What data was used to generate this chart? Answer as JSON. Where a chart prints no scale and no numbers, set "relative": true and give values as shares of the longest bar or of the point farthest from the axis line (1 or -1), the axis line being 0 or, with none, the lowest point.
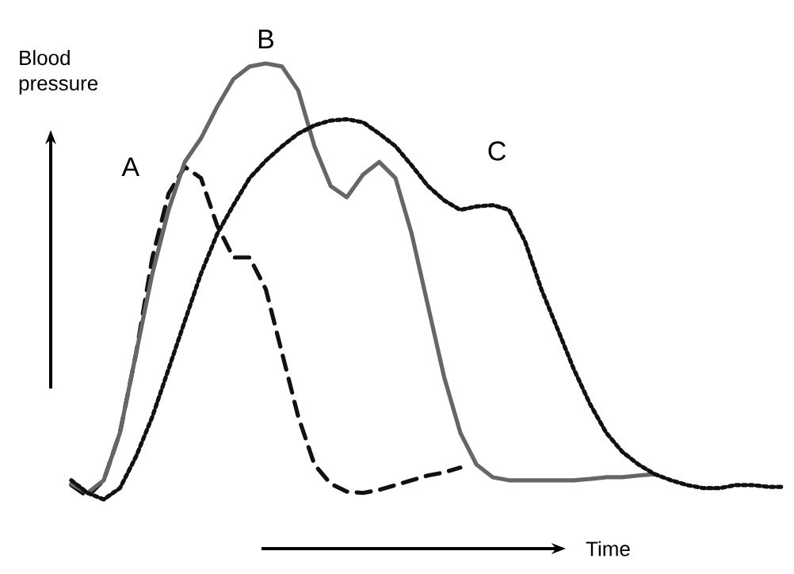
{
  "chart_data": {
    "type": "line",
    "relative": true,
    "xlabel": "Time",
    "ylabel": "Blood pressure",
    "marker": "none",
    "categories": [
      null,
      null,
      null,
      null,
      null,
      null,
      null,
      null,
      null,
      null,
      null,
      null,
      null,
      null,
      null,
      null,
      null,
      null,
      null,
      null,
      null,
      null,
      null,
      null,
      null,
      null,
      null,
      null,
      null,
      null,
      null,
      null,
      null,
      null,
      null,
      null,
      null,
      null,
      null,
      null,
      null,
      null,
      null,
      null,
      null
    ],
    "series": [
      {
        "name": "A",
        "color": "#111111",
        "line_style": "dashed",
        "values": [
          0.033,
          0.007,
          0.044,
          0.153,
          0.336,
          0.555,
          0.701,
          0.763,
          0.737,
          0.628,
          0.555,
          0.555,
          0.482,
          0.336,
          0.19,
          0.08,
          0.036,
          0.018,
          0.015,
          0.022,
          0.033,
          0.044,
          0.055,
          0.062,
          0.073,
          null,
          null,
          null,
          null,
          null,
          null,
          null,
          null,
          null,
          null,
          null,
          null,
          null,
          null,
          null,
          null,
          null,
          null,
          null,
          null
        ]
      },
      {
        "name": "B",
        "color": "#666666",
        "line_style": "solid",
        "values": [
          0.036,
          0.015,
          0.044,
          0.153,
          0.336,
          0.518,
          0.664,
          0.774,
          0.828,
          0.901,
          0.964,
          0.993,
          1,
          0.993,
          0.938,
          0.81,
          0.719,
          0.693,
          0.745,
          0.774,
          0.737,
          0.609,
          0.445,
          0.281,
          0.153,
          0.08,
          0.051,
          0.044,
          0.044,
          0.044,
          0.044,
          0.044,
          0.047,
          0.051,
          0.051,
          0.055,
          0.058,
          null,
          null,
          null,
          null,
          null,
          null,
          null,
          null
        ]
      },
      {
        "name": "C",
        "color": "#111111",
        "line_style": "dotted",
        "values": [
          0.044,
          0.015,
          0,
          0.026,
          0.099,
          0.19,
          0.299,
          0.409,
          0.518,
          0.609,
          0.675,
          0.737,
          0.777,
          0.81,
          0.839,
          0.858,
          0.869,
          0.872,
          0.865,
          0.839,
          0.81,
          0.766,
          0.719,
          0.686,
          0.664,
          0.672,
          0.675,
          0.664,
          0.591,
          0.482,
          0.391,
          0.299,
          0.219,
          0.153,
          0.109,
          0.08,
          0.058,
          0.044,
          0.033,
          0.026,
          0.026,
          0.033,
          0.033,
          0.029,
          0.029
        ]
      }
    ]
  }
}
